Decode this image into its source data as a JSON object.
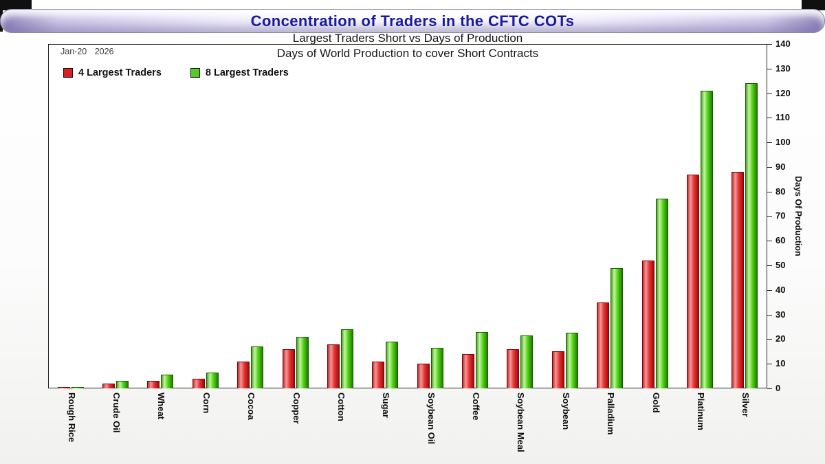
{
  "header": {
    "title": "Concentration of Traders in the CFTC COTs"
  },
  "chart_data": {
    "type": "bar",
    "title": "Largest Traders Short vs Days of Production",
    "subtitle": "Days of World Production to cover Short Contracts",
    "date_label": "Jan-20 2026",
    "ylabel": "Days Of Production",
    "ylim": [
      0,
      140
    ],
    "ytick_step": 10,
    "grid": false,
    "legend_position": "top-left",
    "categories": [
      "Rough Rice",
      "Crude Oil",
      "Wheat",
      "Corn",
      "Cocoa",
      "Copper",
      "Cotton",
      "Sugar",
      "Soybean Oil",
      "Coffee",
      "Soybean Meal",
      "Soybean",
      "Palladium",
      "Gold",
      "Platinum",
      "Silver"
    ],
    "series": [
      {
        "name": "4 Largest Traders",
        "color": "#dd1f1f",
        "values": [
          0.5,
          2,
          3,
          4,
          11,
          16,
          18,
          11,
          10,
          14,
          16,
          15,
          35,
          52,
          87,
          88
        ]
      },
      {
        "name": "8 Largest Traders",
        "color": "#55cc22",
        "values": [
          0.5,
          3,
          5.5,
          6.5,
          17,
          21,
          24,
          19,
          16.5,
          23,
          21.5,
          22.5,
          49,
          77,
          121,
          124
        ]
      }
    ]
  }
}
